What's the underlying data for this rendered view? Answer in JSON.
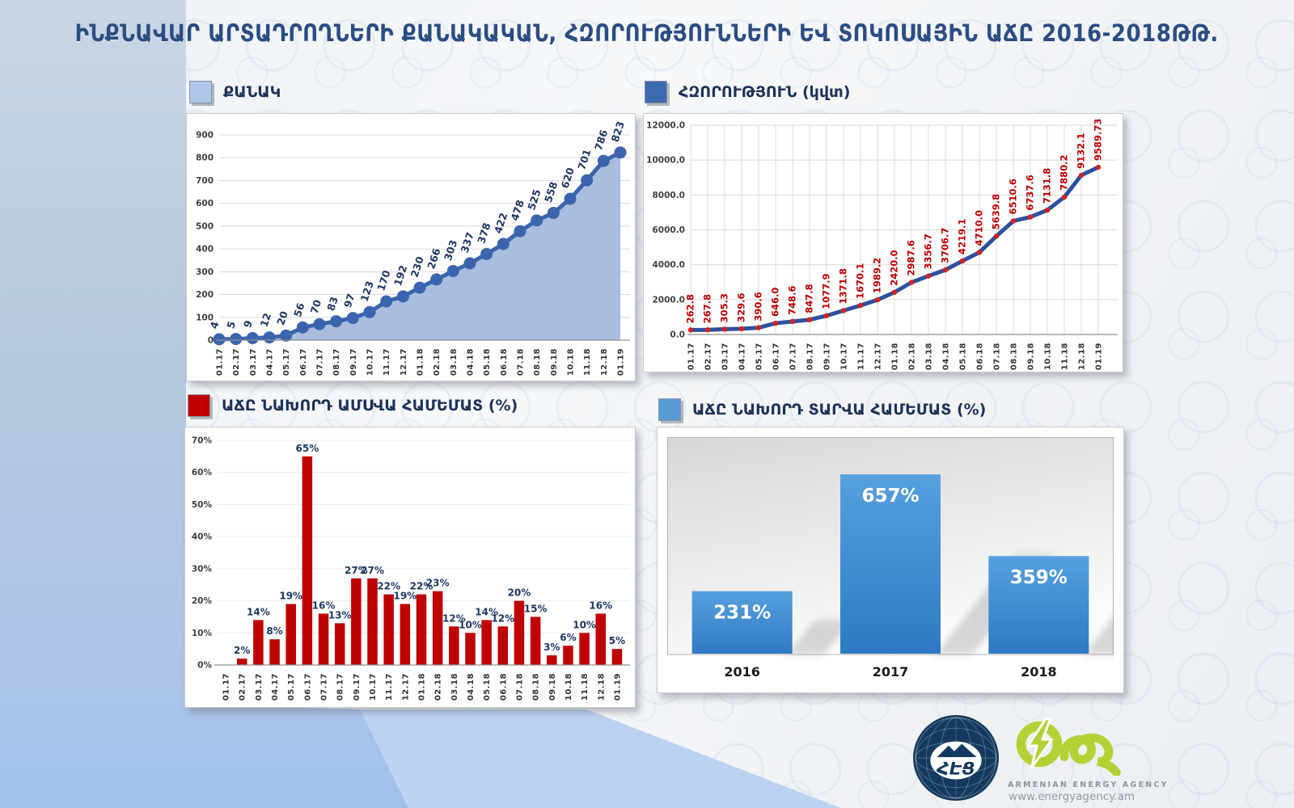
{
  "title": "ԻՆՔՆԱՎԱՐ ԱՐՏԱԴՐՈՂՆԵՐԻ ՔԱՆԱԿԱԿԱՆ, ՀԶՈՐՈՒԹՅՈՒՆՆԵՐԻ ԵՎ ՏՈԿՈՍԱՅԻՆ ԱՃԸ 2016-2018ԹԹ.",
  "footer": {
    "utility_logo_text": "ՀԷՑ",
    "agency_name": "ARMENIAN ENERGY AGENCY",
    "agency_url": "www.energyagency.am"
  },
  "chart_data": [
    {
      "id": "quantity",
      "type": "area",
      "legend": "ՔԱՆԱԿ",
      "legend_color": "#aec6e8",
      "categories": [
        "01.17",
        "02.17",
        "03.17",
        "04.17",
        "05.17",
        "06.17",
        "07.17",
        "08.17",
        "09.17",
        "10.17",
        "11.17",
        "12.17",
        "01.18",
        "02.18",
        "03.18",
        "04.18",
        "05.18",
        "06.18",
        "07.18",
        "08.18",
        "09.18",
        "10.18",
        "11.18",
        "12.18",
        "01.19"
      ],
      "values": [
        4,
        5,
        9,
        12,
        20,
        56,
        70,
        83,
        97,
        123,
        170,
        192,
        230,
        266,
        303,
        337,
        378,
        422,
        478,
        525,
        558,
        620,
        701,
        786,
        823
      ],
      "point_labels": [
        "4",
        "5",
        "9",
        "12",
        "20",
        "56",
        "70",
        "83",
        "97",
        "123",
        "170",
        "192",
        "230",
        "266",
        "303",
        "337",
        "378",
        "422",
        "478",
        "525",
        "558",
        "620",
        "701",
        "786",
        "823"
      ],
      "ylim": [
        0,
        900
      ],
      "yticks": [
        "0",
        "100",
        "200",
        "300",
        "400",
        "500",
        "600",
        "700",
        "800",
        "900"
      ],
      "line_color": "#3a64ad",
      "marker_color": "#3a64ad",
      "area_color": "#a9bede",
      "label_color": "#1f3864",
      "grid": "horizontal",
      "legend_position": "top-left"
    },
    {
      "id": "power_kw",
      "type": "line",
      "legend": "ՀԶՈՐՈՒԹՅՈՒՆ (կվտ)",
      "legend_color": "#3d6ab0",
      "categories": [
        "01.17",
        "02.17",
        "03.17",
        "04.17",
        "05.17",
        "06.17",
        "07.17",
        "08.17",
        "09.17",
        "10.17",
        "11.17",
        "12.17",
        "01.18",
        "02.18",
        "03.18",
        "04.18",
        "05.18",
        "06.18",
        "07.18",
        "08.18",
        "09.18",
        "10.18",
        "11.18",
        "12.18",
        "01.19"
      ],
      "values": [
        262.8,
        267.8,
        305.3,
        329.6,
        390.6,
        646.0,
        748.6,
        847.8,
        1077.9,
        1371.8,
        1670.1,
        1989.2,
        2420.0,
        2987.6,
        3356.7,
        3706.7,
        4219.1,
        4710.0,
        5639.8,
        6510.6,
        6737.6,
        7131.8,
        7880.2,
        9132.1,
        9589.73
      ],
      "point_labels": [
        "262.8",
        "267.8",
        "305.3",
        "329.6",
        "390.6",
        "646.0",
        "748.6",
        "847.8",
        "1077.9",
        "1371.8",
        "1670.1",
        "1989.2",
        "2420.0",
        "2987.6",
        "3356.7",
        "3706.7",
        "4219.1",
        "4710.0",
        "5639.8",
        "6510.6",
        "6737.6",
        "7131.8",
        "7880.2",
        "9132.1",
        "9589.73"
      ],
      "ylim": [
        0,
        12000
      ],
      "yticks": [
        "0.0",
        "2000.0",
        "4000.0",
        "6000.0",
        "8000.0",
        "10000.0",
        "12000.0"
      ],
      "line_color": "#2d4f9e",
      "marker_color": "#d42020",
      "label_color": "#c00000",
      "grid": "both",
      "legend_position": "top-right"
    },
    {
      "id": "growth_vs_prev_month",
      "type": "bar",
      "legend": "ԱՃԸ ՆԱԽՈՐԴ ԱՄՍՎԱ ՀԱՄԵՄԱՏ (%)",
      "legend_color": "#c00000",
      "categories": [
        "01.17",
        "02.17",
        "03.17",
        "04.17",
        "05.17",
        "06.17",
        "07.17",
        "08.17",
        "09.17",
        "10.17",
        "11.17",
        "12.17",
        "01.18",
        "02.18",
        "03.18",
        "04.18",
        "05.18",
        "06.18",
        "07.18",
        "08.18",
        "09.18",
        "10.18",
        "11.18",
        "12.18",
        "01.19"
      ],
      "values": [
        null,
        2,
        14,
        8,
        19,
        65,
        16,
        13,
        27,
        27,
        22,
        19,
        22,
        23,
        12,
        10,
        14,
        12,
        20,
        15,
        3,
        6,
        10,
        16,
        5
      ],
      "point_labels": [
        "",
        "2%",
        "14%",
        "8%",
        "19%",
        "65%",
        "16%",
        "13%",
        "27%",
        "27%",
        "22%",
        "19%",
        "22%",
        "23%",
        "12%",
        "10%",
        "14%",
        "12%",
        "20%",
        "15%",
        "3%",
        "6%",
        "10%",
        "16%",
        "5%"
      ],
      "ylim": [
        0,
        70
      ],
      "yticks": [
        "0%",
        "10%",
        "20%",
        "30%",
        "40%",
        "50%",
        "60%",
        "70%"
      ],
      "bar_color": "#c00000",
      "label_color": "#1f3864",
      "legend_position": "bottom-left"
    },
    {
      "id": "growth_vs_prev_year",
      "type": "bar",
      "legend": "ԱՃԸ ՆԱԽՈՐԴ ՏԱՐՎԱ ՀԱՄԵՄԱՏ (%)",
      "legend_color": "#5b9bd5",
      "categories": [
        "2016",
        "2017",
        "2018"
      ],
      "values": [
        231,
        657,
        359
      ],
      "point_labels": [
        "231%",
        "657%",
        "359%"
      ],
      "ylim": [
        0,
        790
      ],
      "bar_gradient": [
        "#57a0de",
        "#2e7ac2"
      ],
      "label_color": "#ffffff",
      "legend_position": "bottom-right"
    }
  ]
}
